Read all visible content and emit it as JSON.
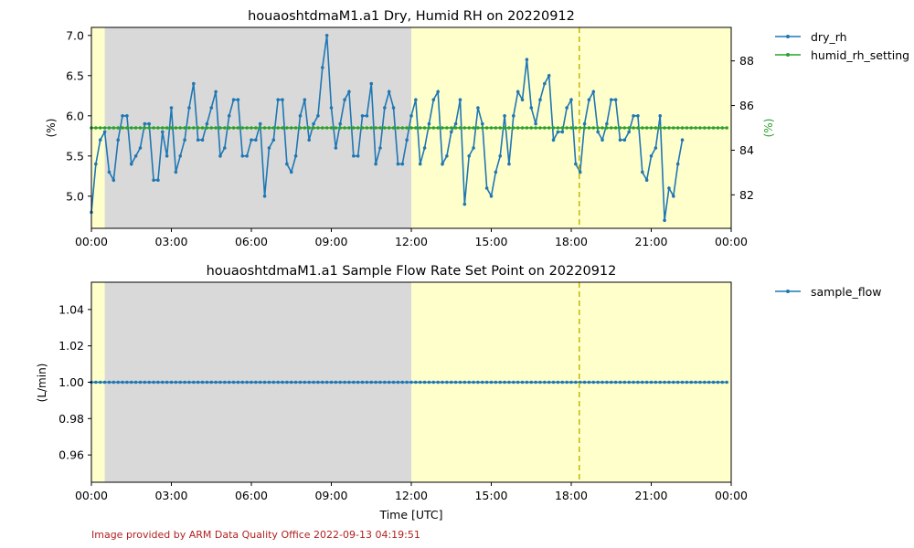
{
  "footer": "Image provided by ARM Data Quality Office 2022-09-13 04:19:51",
  "colors": {
    "series_blue": "#1f77b4",
    "series_green": "#2ca02c",
    "day_band": "#ffffcc",
    "night_band": "#d9d9d9",
    "marker_line": "#c8b400",
    "footer_text": "#b22222"
  },
  "chart_data": [
    {
      "type": "line",
      "title": "houaoshtdmaM1.a1 Dry, Humid RH on 20220912",
      "xlabel": "",
      "ylabel": "(%)",
      "y2label": "(%)",
      "x_ticks": [
        "00:00",
        "03:00",
        "06:00",
        "09:00",
        "12:00",
        "15:00",
        "18:00",
        "21:00",
        "00:00"
      ],
      "xlim_hours": [
        0,
        24
      ],
      "ylim": [
        4.6,
        7.1
      ],
      "y_ticks": [
        "5.0",
        "5.5",
        "6.0",
        "6.5",
        "7.0"
      ],
      "y_tick_values": [
        5.0,
        5.5,
        6.0,
        6.5,
        7.0
      ],
      "y2lim": [
        80.5,
        89.5
      ],
      "y2_ticks": [
        "82",
        "84",
        "86",
        "88"
      ],
      "y2_tick_values": [
        82,
        84,
        86,
        88
      ],
      "night_shading_hours": [
        0.5,
        12.0
      ],
      "vertical_marker_hour": 18.3,
      "legend_placement": "outside right",
      "series": [
        {
          "name": "dry_rh",
          "axis": "left",
          "x_step_minutes": 10,
          "values": [
            4.8,
            5.4,
            5.7,
            5.8,
            5.3,
            5.2,
            5.7,
            6.0,
            6.0,
            5.4,
            5.5,
            5.6,
            5.9,
            5.9,
            5.2,
            5.2,
            5.8,
            5.5,
            6.1,
            5.3,
            5.5,
            5.7,
            6.1,
            6.4,
            5.7,
            5.7,
            5.9,
            6.1,
            6.3,
            5.5,
            5.6,
            6.0,
            6.2,
            6.2,
            5.5,
            5.5,
            5.7,
            5.7,
            5.9,
            5.0,
            5.6,
            5.7,
            6.2,
            6.2,
            5.4,
            5.3,
            5.5,
            6.0,
            6.2,
            5.7,
            5.9,
            6.0,
            6.6,
            7.0,
            6.1,
            5.6,
            5.9,
            6.2,
            6.3,
            5.5,
            5.5,
            6.0,
            6.0,
            6.4,
            5.4,
            5.6,
            6.1,
            6.3,
            6.1,
            5.4,
            5.4,
            5.7,
            6.0,
            6.2,
            5.4,
            5.6,
            5.9,
            6.2,
            6.3,
            5.4,
            5.5,
            5.8,
            5.9,
            6.2,
            4.9,
            5.5,
            5.6,
            6.1,
            5.9,
            5.1,
            5.0,
            5.3,
            5.5,
            6.0,
            5.4,
            6.0,
            6.3,
            6.2,
            6.7,
            6.1,
            5.9,
            6.2,
            6.4,
            6.5,
            5.7,
            5.8,
            5.8,
            6.1,
            6.2,
            5.4,
            5.3,
            5.9,
            6.2,
            6.3,
            5.8,
            5.7,
            5.9,
            6.2,
            6.2,
            5.7,
            5.7,
            5.8,
            6.0,
            6.0,
            5.3,
            5.2,
            5.5,
            5.6,
            6.0,
            4.7,
            5.1,
            5.0,
            5.4,
            5.7
          ]
        },
        {
          "name": "humid_rh_setting",
          "axis": "right",
          "x_step_minutes": 10,
          "constant_value": 85.0,
          "count": 144
        }
      ]
    },
    {
      "type": "line",
      "title": "houaoshtdmaM1.a1 Sample Flow Rate Set Point on 20220912",
      "xlabel": "Time [UTC]",
      "ylabel": "(L/min)",
      "x_ticks": [
        "00:00",
        "03:00",
        "06:00",
        "09:00",
        "12:00",
        "15:00",
        "18:00",
        "21:00",
        "00:00"
      ],
      "xlim_hours": [
        0,
        24
      ],
      "ylim": [
        0.945,
        1.055
      ],
      "y_ticks": [
        "0.96",
        "0.98",
        "1.00",
        "1.02",
        "1.04"
      ],
      "y_tick_values": [
        0.96,
        0.98,
        1.0,
        1.02,
        1.04
      ],
      "night_shading_hours": [
        0.5,
        12.0
      ],
      "vertical_marker_hour": 18.3,
      "legend_placement": "outside right",
      "series": [
        {
          "name": "sample_flow",
          "axis": "left",
          "x_step_minutes": 10,
          "constant_value": 1.0,
          "count": 144
        }
      ]
    }
  ]
}
